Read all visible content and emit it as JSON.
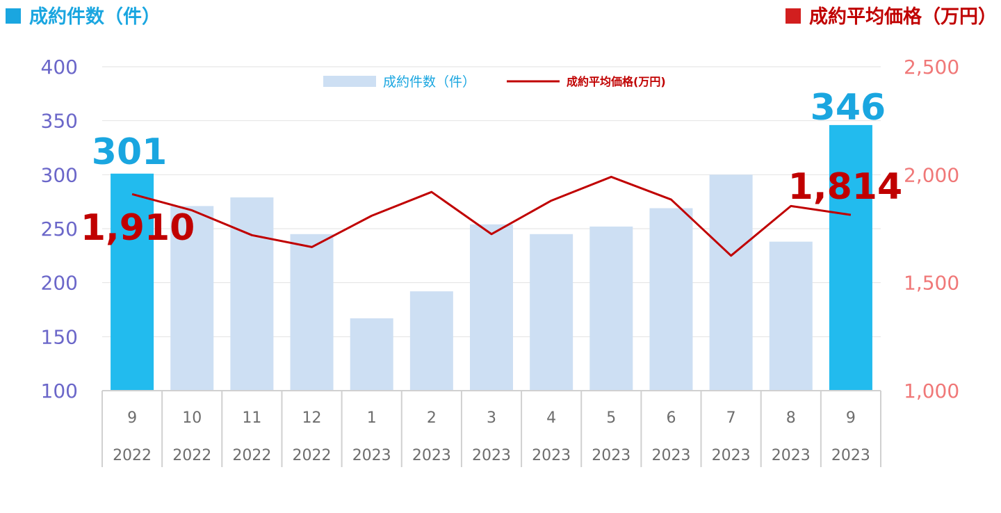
{
  "header": {
    "left_title": "成約件数（件）",
    "right_title": "成約平均価格（万円）",
    "left_color": "#1aa6e0",
    "right_color": "#c00000"
  },
  "chart_data": {
    "type": "bar",
    "categories": [
      "9",
      "10",
      "11",
      "12",
      "1",
      "2",
      "3",
      "4",
      "5",
      "6",
      "7",
      "8",
      "9"
    ],
    "years": [
      "2022",
      "2022",
      "2022",
      "2022",
      "2023",
      "2023",
      "2023",
      "2023",
      "2023",
      "2023",
      "2023",
      "2023",
      "2023"
    ],
    "series": [
      {
        "name": "成約件数（件）",
        "type": "bar",
        "axis": "left",
        "values": [
          301,
          271,
          279,
          245,
          167,
          192,
          254,
          245,
          252,
          269,
          300,
          238,
          346
        ],
        "color": "#cddff3",
        "highlight_color": "#22bbee",
        "highlight_indices": [
          0,
          12
        ]
      },
      {
        "name": "成約平均価格(万円)",
        "type": "line",
        "axis": "right",
        "values": [
          1910,
          1835,
          1720,
          1665,
          1810,
          1920,
          1725,
          1880,
          1990,
          1885,
          1625,
          1855,
          1814
        ],
        "color": "#c00000"
      }
    ],
    "y_left": {
      "min": 100,
      "max": 400,
      "ticks": [
        "100",
        "150",
        "200",
        "250",
        "300",
        "350",
        "400"
      ]
    },
    "y_right": {
      "min": 1000,
      "max": 2500,
      "ticks": [
        "1,000",
        "1,500",
        "2,000",
        "2,500"
      ]
    },
    "grid": true,
    "legend": "top-center",
    "callouts": {
      "first_bar": "301",
      "last_bar": "346",
      "first_price": "1,910",
      "last_price": "1,814"
    }
  }
}
